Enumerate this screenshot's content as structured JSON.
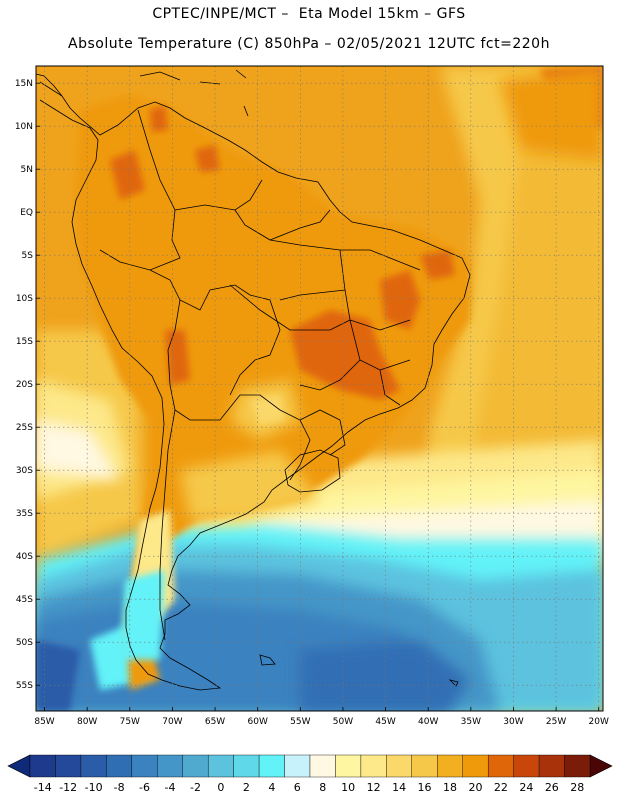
{
  "header": {
    "line1": "CPTEC/INPE/MCT –  Eta Model 15km – GFS",
    "line2": "Absolute Temperature (C) 850hPa – 02/05/2021 12UTC fct=220h"
  },
  "map": {
    "region": "South America",
    "lat_labels": [
      "15N",
      "10N",
      "5N",
      "EQ",
      "5S",
      "10S",
      "15S",
      "20S",
      "25S",
      "30S",
      "35S",
      "40S",
      "45S",
      "50S",
      "55S"
    ],
    "lon_labels": [
      "85W",
      "80W",
      "75W",
      "70W",
      "65W",
      "60W",
      "55W",
      "50W",
      "45W",
      "40W",
      "35W",
      "30W",
      "25W",
      "20W"
    ],
    "lat_values": [
      15,
      10,
      5,
      0,
      -5,
      -10,
      -15,
      -20,
      -25,
      -30,
      -35,
      -40,
      -45,
      -50,
      -55
    ],
    "lon_values": [
      -85,
      -80,
      -75,
      -70,
      -65,
      -60,
      -55,
      -50,
      -45,
      -40,
      -35,
      -30,
      -25,
      -20
    ],
    "lon_range": [
      -86,
      -19.5
    ],
    "lat_range": [
      -58,
      17
    ]
  },
  "colorbar": {
    "labels": [
      "-14",
      "-12",
      "-10",
      "-8",
      "-6",
      "-4",
      "-2",
      "0",
      "2",
      "4",
      "6",
      "8",
      "10",
      "12",
      "14",
      "16",
      "18",
      "20",
      "22",
      "24",
      "26",
      "28"
    ],
    "colors": [
      "#1e3a8c",
      "#24499a",
      "#2a5ca8",
      "#306eb4",
      "#3a82c0",
      "#4596c8",
      "#50aad0",
      "#5cc2de",
      "#5fd8ea",
      "#62f2f8",
      "#c8f2fb",
      "#fff8e2",
      "#fef6a0",
      "#fde88a",
      "#fbd86a",
      "#f6c84a",
      "#f2b020",
      "#ef9a0a",
      "#e0660a",
      "#c8460a",
      "#a8320a",
      "#7a1c08"
    ],
    "low_color": "#0e2a78",
    "high_color": "#4a0606"
  }
}
